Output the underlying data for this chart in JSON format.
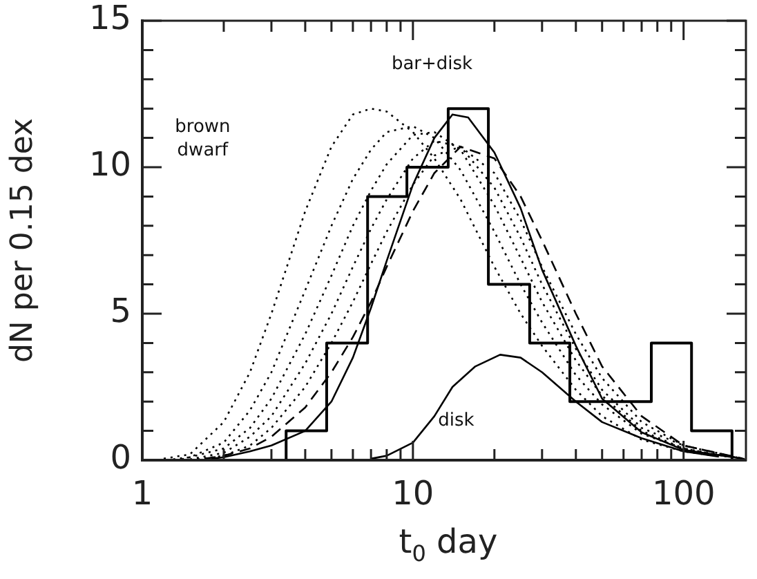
{
  "chart_data": {
    "type": "histogram",
    "xlabel": "t$_{0}$ day",
    "ylabel": "dN per 0.15 dex",
    "log": "x",
    "grid": false,
    "legend": false,
    "marker": "none",
    "xlim": [
      1,
      170
    ],
    "ylim": [
      0,
      15
    ],
    "xticks": [
      1,
      {
        "value": 2,
        "label": null
      },
      {
        "value": 3,
        "label": null
      },
      {
        "value": 4,
        "label": null
      },
      {
        "value": 5,
        "label": null
      },
      {
        "value": 6,
        "label": null
      },
      {
        "value": 7,
        "label": null
      },
      {
        "value": 8,
        "label": null
      },
      {
        "value": 9,
        "label": null
      },
      10,
      {
        "value": 20,
        "label": null
      },
      {
        "value": 30,
        "label": null
      },
      {
        "value": 40,
        "label": null
      },
      {
        "value": 50,
        "label": null
      },
      {
        "value": 60,
        "label": null
      },
      {
        "value": 70,
        "label": null
      },
      {
        "value": 80,
        "label": null
      },
      {
        "value": 90,
        "label": null
      },
      100
    ],
    "yticks": [
      0,
      {
        "value": 1,
        "label": null
      },
      {
        "value": 2,
        "label": null
      },
      {
        "value": 3,
        "label": null
      },
      {
        "value": 4,
        "label": null
      },
      5,
      {
        "value": 6,
        "label": null
      },
      {
        "value": 7,
        "label": null
      },
      {
        "value": 8,
        "label": null
      },
      {
        "value": 9,
        "label": null
      },
      10,
      {
        "value": 11,
        "label": null
      },
      {
        "value": 12,
        "label": null
      },
      {
        "value": 13,
        "label": null
      },
      {
        "value": 14,
        "label": null
      },
      15
    ],
    "bins": [
      3.4,
      4.8,
      6.8,
      9.5,
      13.5,
      19,
      27,
      38,
      54,
      76,
      107,
      151
    ],
    "values": [
      1,
      4,
      9,
      10,
      12,
      6,
      4,
      2,
      2,
      4,
      1
    ],
    "color": "#000000",
    "series": [
      {
        "type": "line",
        "color": "#000000",
        "line_style": "dotted",
        "x": [
          1.2,
          1.5,
          2,
          2.5,
          3,
          4,
          5,
          6,
          7,
          8,
          10,
          12,
          15,
          20,
          25,
          30,
          40,
          50,
          70,
          100,
          130
        ],
        "values": [
          0.05,
          0.2,
          1.3,
          3.0,
          5.0,
          8.5,
          10.7,
          11.8,
          12.0,
          11.9,
          11.2,
          10.3,
          8.9,
          6.6,
          5.0,
          3.9,
          2.4,
          1.5,
          0.7,
          0.3,
          0.15
        ]
      },
      {
        "type": "line",
        "color": "#000000",
        "line_style": "dotted",
        "x": [
          1.3,
          1.5,
          2,
          2.5,
          3,
          4,
          5,
          6,
          7,
          8,
          10,
          12,
          15,
          20,
          25,
          30,
          40,
          50,
          70,
          100,
          140
        ],
        "values": [
          0.03,
          0.1,
          0.6,
          1.7,
          3.0,
          5.8,
          8.0,
          9.6,
          10.6,
          11.2,
          11.4,
          11.0,
          9.9,
          7.8,
          6.0,
          4.7,
          2.9,
          1.9,
          0.9,
          0.4,
          0.15
        ]
      },
      {
        "type": "line",
        "color": "#000000",
        "line_style": "dotted",
        "x": [
          1.4,
          2,
          2.5,
          3,
          4,
          5,
          6,
          7,
          8,
          10,
          12,
          15,
          20,
          25,
          30,
          40,
          50,
          70,
          100,
          145
        ],
        "values": [
          0.03,
          0.4,
          1.1,
          2.1,
          4.3,
          6.3,
          8.0,
          9.2,
          10.1,
          11.1,
          11.2,
          10.6,
          8.7,
          6.9,
          5.4,
          3.4,
          2.2,
          1.0,
          0.4,
          0.12
        ]
      },
      {
        "type": "line",
        "color": "#000000",
        "line_style": "dotted",
        "x": [
          1.5,
          2,
          2.5,
          3,
          4,
          5,
          6,
          7,
          8,
          10,
          12,
          15,
          20,
          25,
          30,
          40,
          50,
          70,
          100,
          155
        ],
        "values": [
          0.03,
          0.25,
          0.8,
          1.5,
          3.3,
          5.0,
          6.6,
          7.9,
          8.9,
          10.3,
          10.9,
          10.7,
          9.3,
          7.6,
          6.0,
          3.8,
          2.4,
          1.1,
          0.5,
          0.1
        ]
      },
      {
        "type": "line",
        "color": "#000000",
        "line_style": "dotted",
        "x": [
          1.6,
          2,
          2.5,
          3,
          4,
          5,
          6,
          7,
          8,
          10,
          12,
          15,
          20,
          25,
          30,
          40,
          50,
          70,
          100,
          160
        ],
        "values": [
          0.03,
          0.15,
          0.5,
          1.1,
          2.5,
          4.0,
          5.4,
          6.7,
          7.8,
          9.4,
          10.4,
          10.7,
          9.8,
          8.2,
          6.6,
          4.3,
          2.8,
          1.3,
          0.5,
          0.08
        ]
      },
      {
        "type": "line",
        "color": "#000000",
        "line_style": "dashed",
        "x": [
          1.7,
          2,
          2.5,
          3,
          4,
          5,
          6,
          7,
          8,
          10,
          12,
          15,
          20,
          25,
          30,
          40,
          50,
          70,
          100,
          165
        ],
        "values": [
          0.05,
          0.15,
          0.4,
          0.8,
          1.8,
          3.0,
          4.2,
          5.4,
          6.6,
          8.5,
          9.8,
          10.7,
          10.3,
          9.0,
          7.5,
          5.0,
          3.2,
          1.5,
          0.5,
          0.06
        ]
      },
      {
        "type": "line",
        "color": "#000000",
        "line_style": "solid",
        "x": [
          1.8,
          2,
          2.5,
          3,
          4,
          5,
          6,
          7,
          8,
          10,
          12,
          14,
          16,
          20,
          25,
          30,
          40,
          50,
          70,
          100,
          168
        ],
        "values": [
          0.05,
          0.1,
          0.3,
          0.5,
          1.0,
          2.0,
          3.5,
          5.2,
          6.8,
          9.4,
          11.0,
          11.8,
          11.7,
          10.5,
          8.6,
          6.5,
          3.9,
          2.1,
          0.95,
          0.35,
          0.04
        ]
      },
      {
        "type": "line",
        "color": "#000000",
        "line_style": "solid",
        "x": [
          7,
          8,
          10,
          12,
          14,
          17,
          21,
          25,
          30,
          40,
          50,
          70,
          100,
          135
        ],
        "values": [
          0.05,
          0.15,
          0.6,
          1.5,
          2.5,
          3.2,
          3.6,
          3.5,
          3.0,
          2.0,
          1.3,
          0.75,
          0.3,
          0.12
        ]
      }
    ],
    "annotations": [
      "brown\ndwarf",
      "bar+disk",
      "disk"
    ]
  }
}
